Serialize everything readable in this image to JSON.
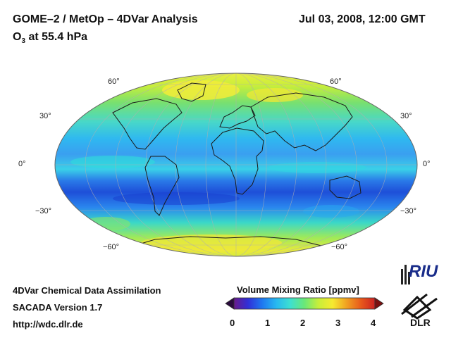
{
  "header": {
    "title": "GOME–2 / MetOp – 4DVar Analysis",
    "datetime": "Jul 03, 2008, 12:00 GMT",
    "subtitle_species": "O",
    "subtitle_sub": "3",
    "subtitle_rest": " at 55.4 hPa"
  },
  "map": {
    "projection": "mollweide",
    "lat_labels_left": [
      "60°",
      "30°",
      "0°",
      "−30°",
      "−60°"
    ],
    "lat_labels_right": [
      "60°",
      "30°",
      "0°",
      "−30°",
      "−60°"
    ]
  },
  "footer": {
    "line1": "4DVar Chemical Data Assimilation",
    "line2": "SACADA Version 1.7",
    "line3": "http://wdc.dlr.de"
  },
  "colorbar": {
    "title": "Volume Mixing Ratio [ppmv]",
    "ticks": [
      "0",
      "1",
      "2",
      "3",
      "4"
    ],
    "colors": [
      "#2a0b3d",
      "#6a1a8a",
      "#3030d8",
      "#1e78f0",
      "#27b8f0",
      "#3ee0d0",
      "#6ae878",
      "#c8ee3a",
      "#f6ea30",
      "#f0a022",
      "#e85a1c",
      "#cc2222",
      "#7a1010"
    ]
  },
  "logos": {
    "riu": "RIU",
    "dlr": "DLR"
  }
}
